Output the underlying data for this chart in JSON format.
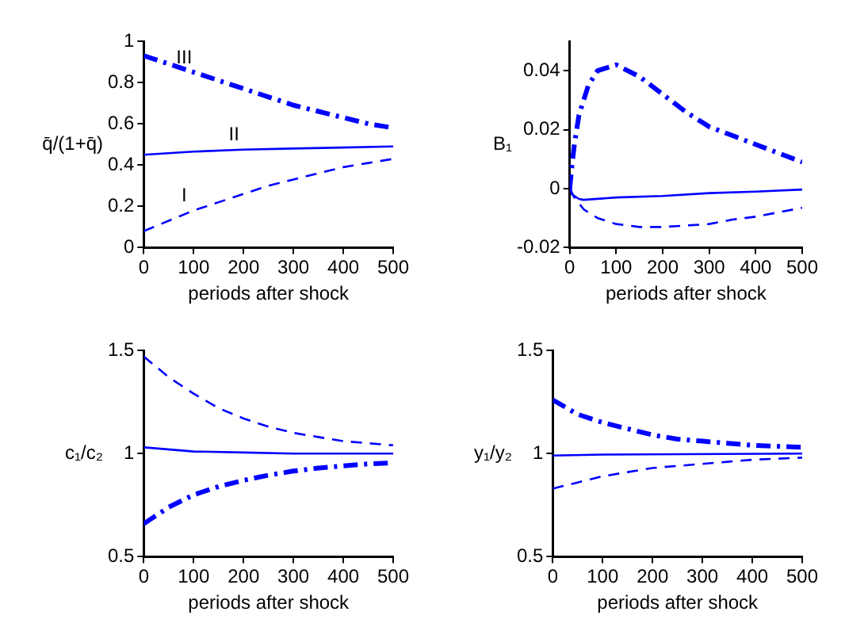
{
  "chart_data": [
    {
      "type": "line",
      "xlabel": "periods after shock",
      "ylabel": "q̄/(1+q̄)",
      "xlim": [
        0,
        500
      ],
      "xticks": [
        0,
        100,
        200,
        300,
        400,
        500
      ],
      "ylim": [
        0,
        1
      ],
      "yticks": [
        0,
        0.2,
        0.4,
        0.6,
        0.8,
        1
      ],
      "grid": false,
      "legend": false,
      "marker": "none",
      "series": [
        {
          "name": "I",
          "color": "#0000ff",
          "line_style": "dashed",
          "x": [
            0,
            50,
            100,
            150,
            200,
            250,
            300,
            350,
            400,
            450,
            500
          ],
          "values": [
            0.08,
            0.13,
            0.18,
            0.22,
            0.26,
            0.3,
            0.33,
            0.36,
            0.39,
            0.41,
            0.43
          ]
        },
        {
          "name": "II",
          "color": "#0000ff",
          "line_style": "solid",
          "x": [
            0,
            100,
            200,
            300,
            400,
            500
          ],
          "values": [
            0.45,
            0.465,
            0.475,
            0.48,
            0.485,
            0.49
          ]
        },
        {
          "name": "III",
          "color": "#0000ff",
          "line_style": "dashdot",
          "x": [
            0,
            50,
            100,
            150,
            200,
            250,
            300,
            350,
            400,
            450,
            500
          ],
          "values": [
            0.93,
            0.89,
            0.85,
            0.81,
            0.77,
            0.73,
            0.69,
            0.66,
            0.63,
            0.6,
            0.58
          ]
        }
      ]
    },
    {
      "type": "line",
      "xlabel": "periods after shock",
      "ylabel": "B₁",
      "xlim": [
        0,
        500
      ],
      "xticks": [
        0,
        100,
        200,
        300,
        400,
        500
      ],
      "ylim": [
        -0.02,
        0.05
      ],
      "yticks": [
        -0.02,
        0,
        0.02,
        0.04
      ],
      "grid": false,
      "legend": false,
      "marker": "none",
      "series": [
        {
          "color": "#0000ff",
          "line_style": "dashed",
          "x": [
            0,
            10,
            30,
            60,
            100,
            150,
            200,
            250,
            300,
            350,
            400,
            450,
            500
          ],
          "values": [
            0,
            -0.003,
            -0.007,
            -0.01,
            -0.012,
            -0.013,
            -0.013,
            -0.0125,
            -0.012,
            -0.0105,
            -0.0095,
            -0.008,
            -0.0065
          ]
        },
        {
          "color": "#0000ff",
          "line_style": "solid",
          "x": [
            0,
            5,
            20,
            30,
            100,
            200,
            300,
            400,
            500
          ],
          "values": [
            0.002,
            -0.002,
            -0.0035,
            -0.0038,
            -0.003,
            -0.0025,
            -0.0015,
            -0.001,
            -0.0003
          ]
        },
        {
          "color": "#0000ff",
          "line_style": "dashdot",
          "x": [
            0,
            5,
            10,
            20,
            40,
            60,
            100,
            150,
            200,
            250,
            300,
            350,
            400,
            450,
            500
          ],
          "values": [
            0,
            0.008,
            0.015,
            0.025,
            0.035,
            0.04,
            0.042,
            0.038,
            0.032,
            0.026,
            0.021,
            0.018,
            0.015,
            0.012,
            0.009
          ]
        }
      ]
    },
    {
      "type": "line",
      "xlabel": "periods after shock",
      "ylabel": "c₁/c₂",
      "xlim": [
        0,
        500
      ],
      "xticks": [
        0,
        100,
        200,
        300,
        400,
        500
      ],
      "ylim": [
        0.5,
        1.5
      ],
      "yticks": [
        0.5,
        1,
        1.5
      ],
      "grid": false,
      "legend": false,
      "marker": "none",
      "series": [
        {
          "color": "#0000ff",
          "line_style": "dashed",
          "x": [
            0,
            50,
            100,
            150,
            200,
            250,
            300,
            350,
            400,
            450,
            500
          ],
          "values": [
            1.47,
            1.37,
            1.29,
            1.22,
            1.17,
            1.13,
            1.1,
            1.08,
            1.06,
            1.05,
            1.04
          ]
        },
        {
          "color": "#0000ff",
          "line_style": "solid",
          "x": [
            0,
            100,
            200,
            300,
            500
          ],
          "values": [
            1.03,
            1.01,
            1.005,
            1,
            1
          ]
        },
        {
          "color": "#0000ff",
          "line_style": "dashdot",
          "x": [
            0,
            50,
            100,
            150,
            200,
            250,
            300,
            350,
            400,
            450,
            500
          ],
          "values": [
            0.66,
            0.74,
            0.8,
            0.84,
            0.87,
            0.895,
            0.915,
            0.93,
            0.94,
            0.95,
            0.955
          ]
        }
      ]
    },
    {
      "type": "line",
      "xlabel": "periods after shock",
      "ylabel": "y₁/y₂",
      "xlim": [
        0,
        500
      ],
      "xticks": [
        0,
        100,
        200,
        300,
        400,
        500
      ],
      "ylim": [
        0.5,
        1.5
      ],
      "yticks": [
        0.5,
        1,
        1.5
      ],
      "grid": false,
      "legend": false,
      "marker": "none",
      "series": [
        {
          "color": "#0000ff",
          "line_style": "dashed",
          "x": [
            0,
            50,
            100,
            150,
            200,
            250,
            300,
            350,
            400,
            450,
            500
          ],
          "values": [
            0.83,
            0.86,
            0.89,
            0.91,
            0.93,
            0.94,
            0.95,
            0.96,
            0.97,
            0.975,
            0.98
          ]
        },
        {
          "color": "#0000ff",
          "line_style": "solid",
          "x": [
            0,
            100,
            500
          ],
          "values": [
            0.99,
            0.995,
            1
          ]
        },
        {
          "color": "#0000ff",
          "line_style": "dashdot",
          "x": [
            0,
            50,
            100,
            150,
            200,
            250,
            300,
            350,
            400,
            450,
            500
          ],
          "values": [
            1.26,
            1.19,
            1.15,
            1.12,
            1.09,
            1.07,
            1.06,
            1.05,
            1.04,
            1.035,
            1.03
          ]
        }
      ]
    }
  ]
}
